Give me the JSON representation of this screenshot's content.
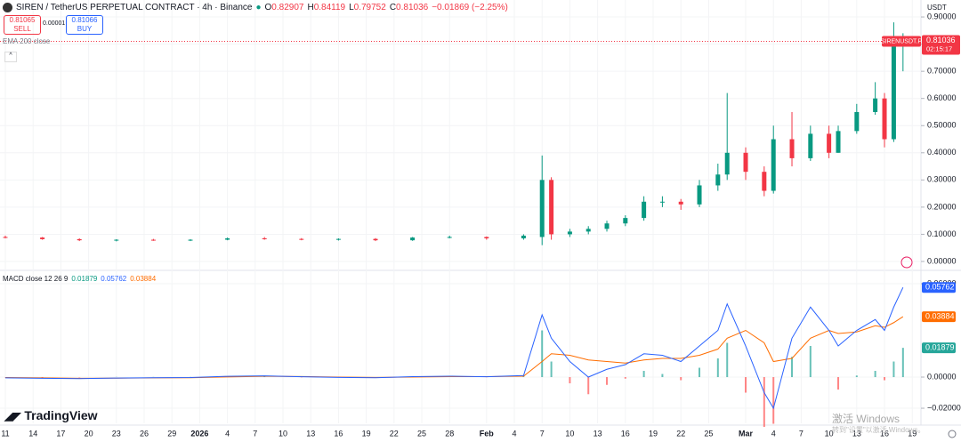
{
  "header": {
    "symbol": "SIREN / TetherUS PERPETUAL CONTRACT · 4h · Binance",
    "ohlc": [
      {
        "key": "O",
        "value": "0.82907"
      },
      {
        "key": "H",
        "value": "0.84119"
      },
      {
        "key": "L",
        "value": "0.79752"
      },
      {
        "key": "C",
        "value": "0.81036"
      }
    ],
    "change": "−0.01869 (−2.25%)"
  },
  "trade": {
    "sell_price": "0.81065",
    "sell": "SELL",
    "spread": "0.00001",
    "buy_price": "0.81066",
    "buy": "BUY"
  },
  "indicator": "EMA 200 close",
  "currency": "USDT",
  "logo": "TradingView",
  "watermark": [
    "激活 Windows",
    "转到\"设置\"以激活 Windows。"
  ],
  "chart_data": [
    {
      "type": "candlestick",
      "colors": {
        "up": "#089981",
        "down": "#f23645"
      },
      "x": [
        0,
        4,
        8,
        12,
        16,
        20,
        24,
        28,
        32,
        36,
        40,
        44,
        48,
        52,
        56,
        58,
        59,
        61,
        63,
        65,
        67,
        69,
        71,
        73,
        75,
        77,
        78,
        80,
        82,
        83,
        85,
        87,
        89,
        90,
        92,
        94,
        95,
        96,
        97
      ],
      "open": [
        0.09,
        0.088,
        0.082,
        0.078,
        0.08,
        0.079,
        0.08,
        0.085,
        0.083,
        0.08,
        0.083,
        0.078,
        0.088,
        0.09,
        0.085,
        0.09,
        0.3,
        0.1,
        0.11,
        0.12,
        0.14,
        0.16,
        0.22,
        0.22,
        0.21,
        0.28,
        0.32,
        0.4,
        0.33,
        0.26,
        0.45,
        0.38,
        0.47,
        0.4,
        0.48,
        0.55,
        0.6,
        0.45,
        0.8
      ],
      "high": [
        0.095,
        0.09,
        0.085,
        0.082,
        0.083,
        0.082,
        0.088,
        0.09,
        0.086,
        0.085,
        0.086,
        0.09,
        0.095,
        0.092,
        0.1,
        0.39,
        0.31,
        0.12,
        0.13,
        0.15,
        0.17,
        0.24,
        0.24,
        0.23,
        0.3,
        0.36,
        0.62,
        0.42,
        0.35,
        0.5,
        0.55,
        0.5,
        0.5,
        0.5,
        0.58,
        0.66,
        0.62,
        0.88,
        0.84
      ],
      "low": [
        0.085,
        0.08,
        0.075,
        0.074,
        0.076,
        0.075,
        0.078,
        0.08,
        0.078,
        0.077,
        0.075,
        0.076,
        0.085,
        0.08,
        0.08,
        0.06,
        0.08,
        0.09,
        0.1,
        0.11,
        0.13,
        0.15,
        0.2,
        0.19,
        0.2,
        0.26,
        0.3,
        0.3,
        0.24,
        0.25,
        0.35,
        0.37,
        0.38,
        0.4,
        0.47,
        0.54,
        0.42,
        0.44,
        0.7
      ],
      "close": [
        0.088,
        0.082,
        0.078,
        0.08,
        0.079,
        0.08,
        0.085,
        0.083,
        0.08,
        0.083,
        0.078,
        0.088,
        0.09,
        0.085,
        0.095,
        0.3,
        0.1,
        0.11,
        0.12,
        0.14,
        0.16,
        0.22,
        0.22,
        0.21,
        0.28,
        0.32,
        0.4,
        0.33,
        0.26,
        0.45,
        0.38,
        0.47,
        0.4,
        0.48,
        0.55,
        0.6,
        0.45,
        0.8,
        0.81
      ],
      "xlim": [
        -0.577,
        98.94
      ],
      "ylim": [
        -0.0295,
        0.9624
      ],
      "yticks": [
        {
          "value": 0,
          "label": "0.00000"
        },
        {
          "value": 0.1,
          "label": "0.10000"
        },
        {
          "value": 0.2,
          "label": "0.20000"
        },
        {
          "value": 0.3,
          "label": "0.30000"
        },
        {
          "value": 0.4,
          "label": "0.40000"
        },
        {
          "value": 0.5,
          "label": "0.50000"
        },
        {
          "value": 0.6,
          "label": "0.60000"
        },
        {
          "value": 0.7,
          "label": "0.70000"
        },
        {
          "value": 0.8,
          "label": "0.80000"
        },
        {
          "value": 0.9,
          "label": "0.90000"
        }
      ],
      "last_value": 0.81036,
      "last_label": {
        "symbol": "SIRENUSDT.P",
        "price": "0.81036",
        "countdown": "02:15:17"
      },
      "xticks": [
        {
          "value": 0,
          "label": "11"
        },
        {
          "value": 3,
          "label": "14"
        },
        {
          "value": 6,
          "label": "17"
        },
        {
          "value": 9,
          "label": "20"
        },
        {
          "value": 12,
          "label": "23"
        },
        {
          "value": 15,
          "label": "26"
        },
        {
          "value": 18,
          "label": "29"
        },
        {
          "value": 21,
          "label": "2026"
        },
        {
          "value": 24,
          "label": "4"
        },
        {
          "value": 27,
          "label": "7"
        },
        {
          "value": 30,
          "label": "10"
        },
        {
          "value": 33,
          "label": "13"
        },
        {
          "value": 36,
          "label": "16"
        },
        {
          "value": 39,
          "label": "19"
        },
        {
          "value": 42,
          "label": "22"
        },
        {
          "value": 45,
          "label": "25"
        },
        {
          "value": 48,
          "label": "28"
        },
        {
          "value": 52,
          "label": "Feb"
        },
        {
          "value": 55,
          "label": "4"
        },
        {
          "value": 58,
          "label": "7"
        },
        {
          "value": 61,
          "label": "10"
        },
        {
          "value": 64,
          "label": "13"
        },
        {
          "value": 67,
          "label": "16"
        },
        {
          "value": 70,
          "label": "19"
        },
        {
          "value": 73,
          "label": "22"
        },
        {
          "value": 76,
          "label": "25"
        },
        {
          "value": 80,
          "label": "Mar"
        },
        {
          "value": 83,
          "label": "4"
        },
        {
          "value": 86,
          "label": "7"
        },
        {
          "value": 89,
          "label": "10"
        },
        {
          "value": 92,
          "label": "13"
        },
        {
          "value": 95,
          "label": "16"
        },
        {
          "value": 98,
          "label": "19"
        }
      ]
    },
    {
      "type": "macd",
      "title": "MACD close 12 26 9",
      "legend_values": [
        "0.01879",
        "0.05762",
        "0.03884"
      ],
      "x": [
        0,
        4,
        8,
        12,
        16,
        20,
        24,
        28,
        32,
        36,
        40,
        44,
        48,
        52,
        56,
        58,
        59,
        61,
        63,
        65,
        67,
        69,
        71,
        73,
        75,
        77,
        78,
        80,
        82,
        83,
        85,
        87,
        89,
        90,
        92,
        94,
        95,
        96,
        97
      ],
      "macd": {
        "color": "#2962ff",
        "values": [
          -0.0005,
          -0.0008,
          -0.001,
          -0.0006,
          -0.0004,
          -0.0003,
          0.0005,
          0.0008,
          0.0002,
          -0.0002,
          -0.0004,
          0.0003,
          0.0006,
          0.0002,
          0.001,
          0.04,
          0.025,
          0.01,
          0,
          0.005,
          0.008,
          0.015,
          0.014,
          0.01,
          0.02,
          0.03,
          0.047,
          0.02,
          -0.01,
          -0.02,
          0.025,
          0.045,
          0.03,
          0.02,
          0.03,
          0.037,
          0.03,
          0.045,
          0.0576
        ]
      },
      "signal": {
        "color": "#ff6d00",
        "values": [
          -0.0003,
          -0.0005,
          -0.0008,
          -0.0007,
          -0.0005,
          -0.0004,
          0.0001,
          0.0005,
          0.0004,
          0,
          -0.0002,
          0,
          0.0003,
          0.0003,
          0.0006,
          0.01,
          0.015,
          0.014,
          0.011,
          0.01,
          0.009,
          0.011,
          0.012,
          0.012,
          0.014,
          0.018,
          0.025,
          0.03,
          0.022,
          0.01,
          0.012,
          0.025,
          0.03,
          0.028,
          0.029,
          0.033,
          0.032,
          0.035,
          0.0388
        ]
      },
      "histogram": {
        "up": "#26a69a",
        "down": "#ff5252",
        "values": [
          -0.0002,
          -0.0003,
          -0.0002,
          0.0001,
          0.0001,
          0.0001,
          0.0004,
          0.0003,
          -0.0002,
          -0.0002,
          -0.0002,
          0.0003,
          0.0003,
          -0.0001,
          0.0004,
          0.03,
          0.01,
          -0.004,
          -0.011,
          -0.005,
          -0.001,
          0.004,
          0.002,
          -0.002,
          0.006,
          0.012,
          0.022,
          -0.01,
          -0.032,
          -0.03,
          0.013,
          0.02,
          0,
          -0.008,
          0.001,
          0.004,
          -0.002,
          0.01,
          0.0188
        ]
      },
      "xlim": [
        -0.577,
        98.94
      ],
      "ylim": [
        -0.0297,
        0.068
      ],
      "yticks": [
        {
          "value": -0.02,
          "label": "−0.02000"
        },
        {
          "value": 0,
          "label": "0.00000"
        },
        {
          "value": 0.06,
          "label": "0.06000"
        }
      ]
    }
  ]
}
